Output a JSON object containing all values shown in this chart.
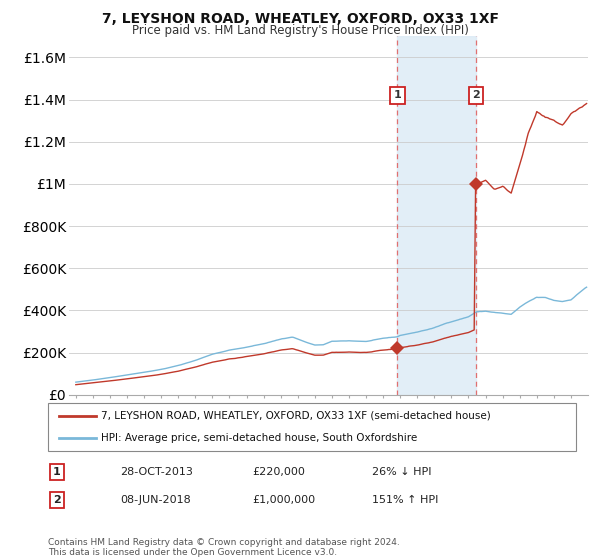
{
  "title": "7, LEYSHON ROAD, WHEATLEY, OXFORD, OX33 1XF",
  "subtitle": "Price paid vs. HM Land Registry's House Price Index (HPI)",
  "hpi_label": "HPI: Average price, semi-detached house, South Oxfordshire",
  "property_label": "7, LEYSHON ROAD, WHEATLEY, OXFORD, OX33 1XF (semi-detached house)",
  "transaction1_date": "28-OCT-2013",
  "transaction1_price": 220000,
  "transaction1_note": "26% ↓ HPI",
  "transaction2_date": "08-JUN-2018",
  "transaction2_price": 1000000,
  "transaction2_note": "151% ↑ HPI",
  "footer": "Contains HM Land Registry data © Crown copyright and database right 2024.\nThis data is licensed under the Open Government Licence v3.0.",
  "ylim_max": 1700000,
  "hpi_color": "#7ab8d9",
  "property_color": "#c0392b",
  "transaction1_x": 2013.83,
  "transaction2_x": 2018.45,
  "background_color": "#ffffff"
}
